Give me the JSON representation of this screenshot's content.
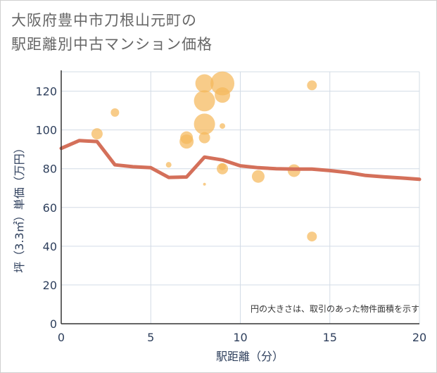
{
  "title_lines": [
    "大阪府豊中市刀根山元町の",
    "駅距離別中古マンション価格"
  ],
  "chart_data": {
    "type": "scatter",
    "title": "大阪府豊中市刀根山元町の駅距離別中古マンション価格",
    "xlabel": "駅距離（分）",
    "ylabel": "坪（3.3㎡）単価（万円）",
    "xlim": [
      0,
      20
    ],
    "ylim": [
      0,
      130
    ],
    "xticks": [
      0,
      5,
      10,
      15,
      20
    ],
    "yticks": [
      0,
      20,
      40,
      60,
      80,
      100,
      120
    ],
    "grid": true,
    "annotation": "円の大きさは、取引のあった物件面積を示す",
    "bubble_color": "#f5b95c",
    "line_color": "#d4705a",
    "bubbles": [
      {
        "x": 2,
        "y": 98,
        "size": 8
      },
      {
        "x": 3,
        "y": 109,
        "size": 6
      },
      {
        "x": 6,
        "y": 82,
        "size": 4
      },
      {
        "x": 7,
        "y": 96,
        "size": 9
      },
      {
        "x": 7,
        "y": 94,
        "size": 10
      },
      {
        "x": 8,
        "y": 124,
        "size": 13
      },
      {
        "x": 8,
        "y": 115,
        "size": 15
      },
      {
        "x": 8,
        "y": 103,
        "size": 15
      },
      {
        "x": 8,
        "y": 96,
        "size": 8
      },
      {
        "x": 8,
        "y": 72,
        "size": 2
      },
      {
        "x": 9,
        "y": 124,
        "size": 17
      },
      {
        "x": 9,
        "y": 118,
        "size": 11
      },
      {
        "x": 9,
        "y": 102,
        "size": 4
      },
      {
        "x": 9,
        "y": 81,
        "size": 5
      },
      {
        "x": 9,
        "y": 80,
        "size": 8
      },
      {
        "x": 11,
        "y": 76,
        "size": 9
      },
      {
        "x": 13,
        "y": 79,
        "size": 9
      },
      {
        "x": 14,
        "y": 123,
        "size": 7
      },
      {
        "x": 14,
        "y": 45,
        "size": 7
      }
    ],
    "series": [
      {
        "x": [
          0,
          1,
          2,
          3,
          4,
          5,
          6,
          7,
          8,
          9,
          10,
          11,
          12,
          13,
          14,
          15,
          16,
          17,
          18,
          19,
          20
        ],
        "values": [
          90.5,
          94.5,
          94,
          82,
          81,
          80.5,
          75.5,
          75.7,
          86,
          84.5,
          81.5,
          80.5,
          80,
          79.8,
          79.8,
          79,
          78,
          76.5,
          75.8,
          75.2,
          74.5
        ]
      }
    ]
  }
}
